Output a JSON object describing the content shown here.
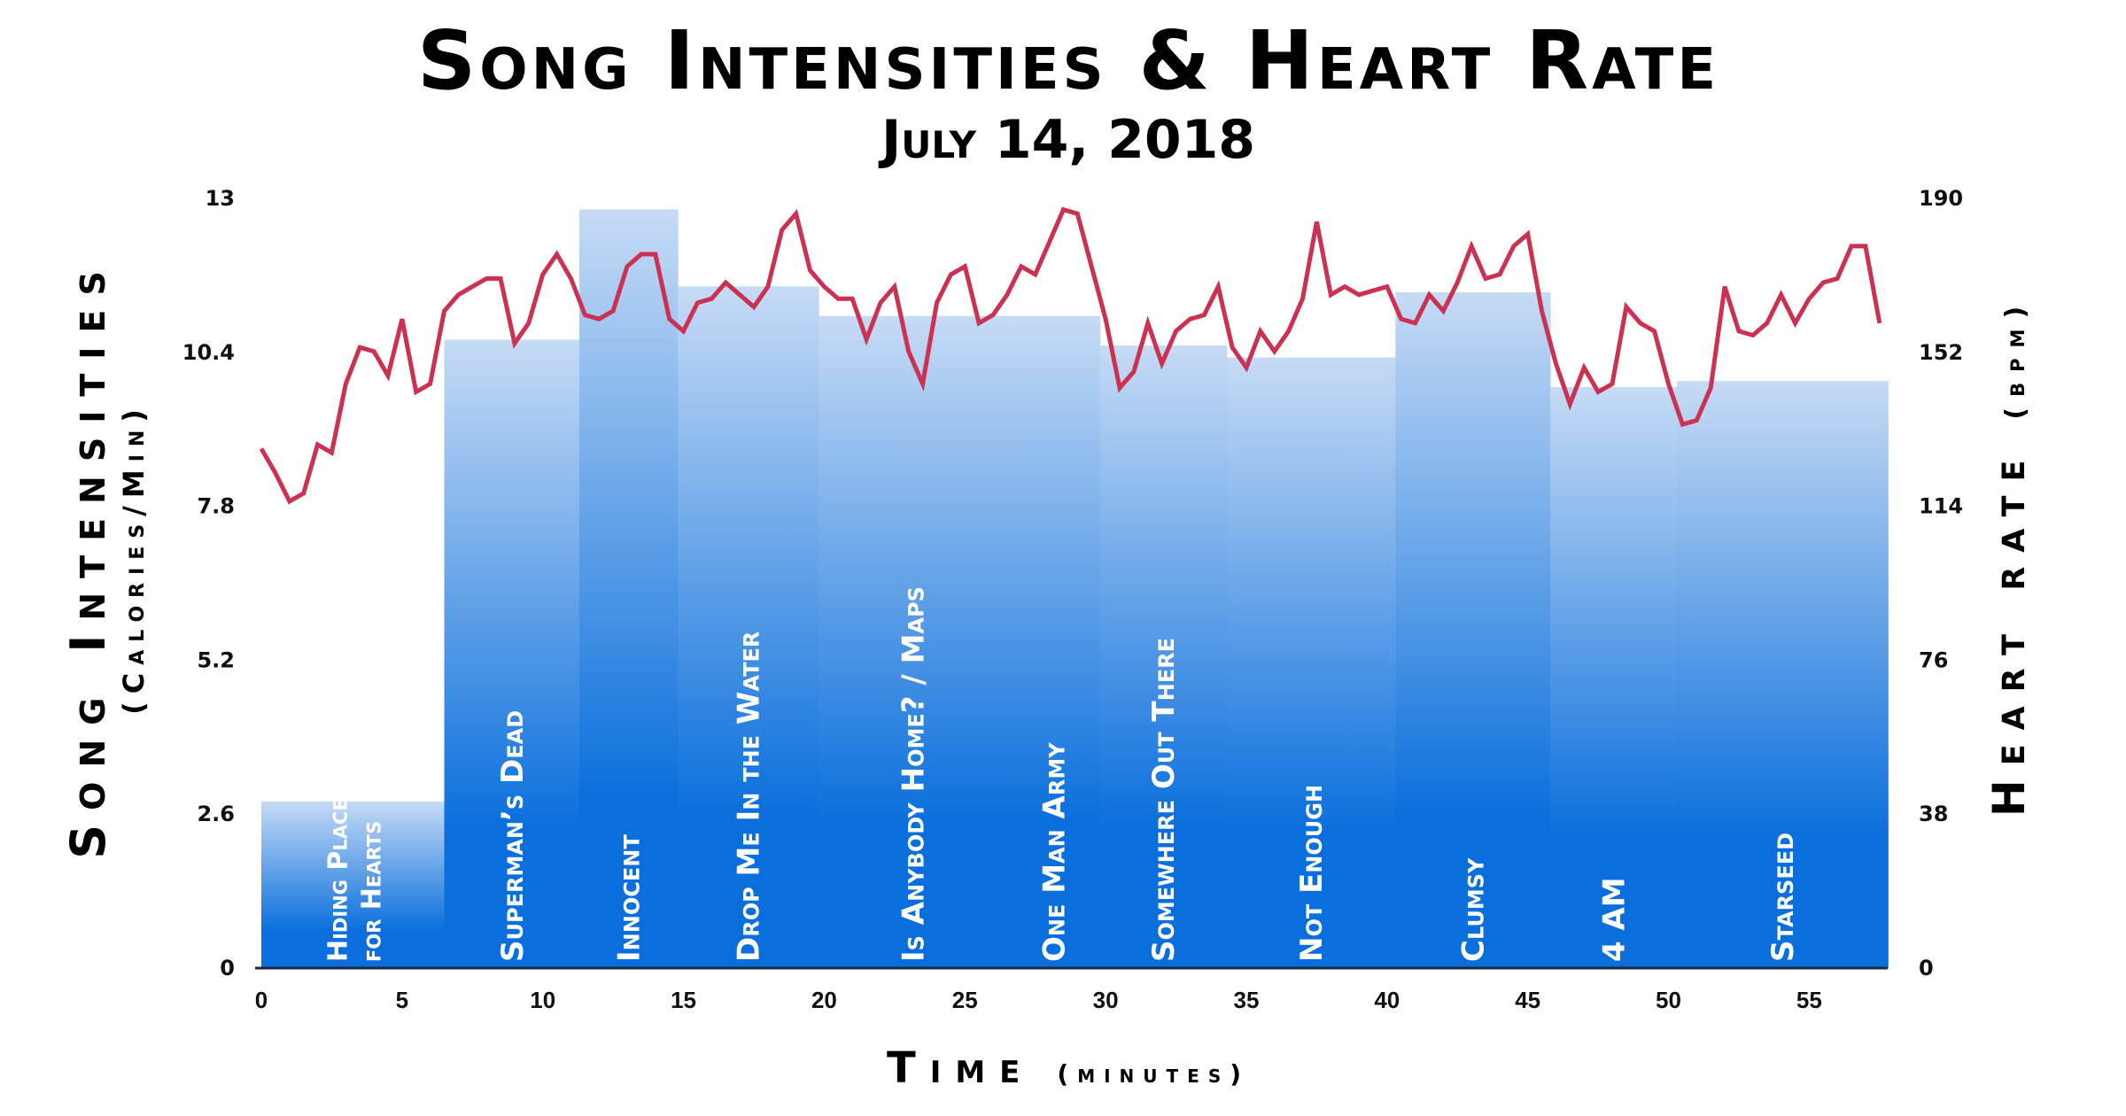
{
  "chart_data": {
    "type": "bar+line",
    "title": "Song Intensities & Heart Rate",
    "subtitle": "July 14, 2018",
    "xlabel": "Time",
    "xlabel_unit": "(minutes)",
    "ylabel_left": "Song Intensities",
    "ylabel_left_unit": "(Calories/Min)",
    "ylabel_right": "Heart rate",
    "ylabel_right_unit": "(bpm)",
    "xlim": [
      0,
      58
    ],
    "ylim_left": [
      0,
      13
    ],
    "ylim_right": [
      0,
      190
    ],
    "x_ticks": [
      "0",
      "5",
      "10",
      "15",
      "20",
      "25",
      "30",
      "35",
      "40",
      "45",
      "50",
      "55"
    ],
    "y_left_ticks": [
      "0",
      "2.6",
      "5.2",
      "7.8",
      "10.4",
      "13"
    ],
    "y_right_ticks": [
      "0",
      "38",
      "76",
      "114",
      "152",
      "190"
    ],
    "grid": false,
    "colors": {
      "bar_top": "#c6dbf5",
      "bar_bottom": "#0a6fdc",
      "line": "#cc3152",
      "axis": "#1a2a40"
    },
    "songs": [
      {
        "label": [
          "Hiding Place",
          "for Hearts"
        ],
        "start": 0,
        "end": 6.5,
        "intensity": 2.8
      },
      {
        "label": [
          "Superman’s Dead"
        ],
        "start": 6.5,
        "end": 11.3,
        "intensity": 10.6
      },
      {
        "label": [
          "Innocent"
        ],
        "start": 11.3,
        "end": 14.8,
        "intensity": 12.8
      },
      {
        "label": [
          "Drop Me In the Water"
        ],
        "start": 14.8,
        "end": 19.8,
        "intensity": 11.5
      },
      {
        "label": [
          "Is Anybody Home? / Maps"
        ],
        "start": 19.8,
        "end": 26.5,
        "intensity": 11.0
      },
      {
        "label": [
          "One Man Army"
        ],
        "start": 26.5,
        "end": 29.8,
        "intensity": 11.0
      },
      {
        "label": [
          "Somewhere Out There"
        ],
        "start": 29.8,
        "end": 34.3,
        "intensity": 10.5
      },
      {
        "label": [
          "Not Enough"
        ],
        "start": 34.3,
        "end": 40.3,
        "intensity": 10.3
      },
      {
        "label": [
          "Clumsy"
        ],
        "start": 40.3,
        "end": 45.8,
        "intensity": 11.4
      },
      {
        "label": [
          "4 AM"
        ],
        "start": 45.8,
        "end": 50.3,
        "intensity": 9.8
      },
      {
        "label": [
          "Starseed"
        ],
        "start": 50.3,
        "end": 57.8,
        "intensity": 9.9
      }
    ],
    "heart_rate_interval_min": 0.5,
    "heart_rate": [
      128,
      122,
      115,
      117,
      129,
      127,
      144,
      153,
      152,
      146,
      160,
      142,
      144,
      162,
      166,
      168,
      170,
      170,
      154,
      159,
      171,
      176,
      170,
      161,
      160,
      162,
      173,
      176,
      176,
      160,
      157,
      164,
      165,
      169,
      166,
      163,
      168,
      182,
      186,
      172,
      168,
      165,
      165,
      155,
      164,
      168,
      152,
      144,
      164,
      171,
      173,
      159,
      161,
      166,
      173,
      171,
      179,
      187,
      186,
      173,
      160,
      143,
      147,
      159,
      149,
      157,
      160,
      161,
      168,
      153,
      148,
      157,
      152,
      157,
      165,
      184,
      166,
      168,
      166,
      167,
      168,
      160,
      159,
      166,
      162,
      169,
      178,
      170,
      171,
      178,
      181,
      162,
      149,
      139,
      148,
      142,
      144,
      163,
      159,
      157,
      144,
      134,
      135,
      143,
      168,
      157,
      156,
      159,
      166,
      159,
      165,
      169,
      170,
      178,
      178,
      159
    ]
  }
}
